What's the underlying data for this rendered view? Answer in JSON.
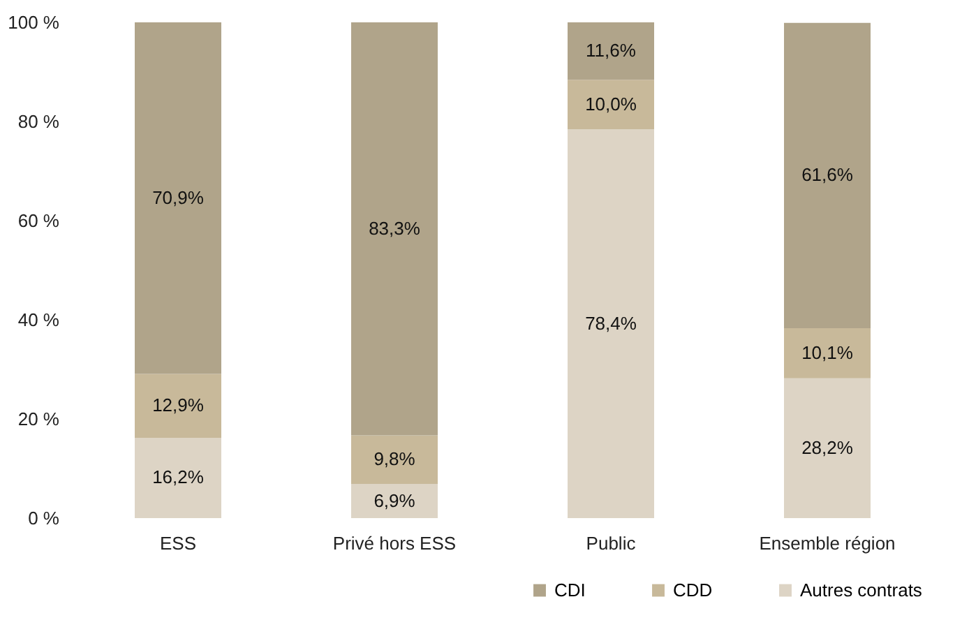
{
  "chart_data": {
    "type": "bar",
    "stacked": true,
    "categories": [
      "ESS",
      "Privé hors ESS",
      "Public",
      "Ensemble région"
    ],
    "series": [
      {
        "name": "Autres contrats",
        "color": "#ddd4c5",
        "values": [
          16.2,
          6.9,
          78.4,
          28.2
        ],
        "value_labels": [
          "16,2%",
          "6,9%",
          "78,4%",
          "28,2%"
        ]
      },
      {
        "name": "CDD",
        "color": "#c8b99a",
        "values": [
          12.9,
          9.8,
          10.0,
          10.1
        ],
        "value_labels": [
          "12,9%",
          "9,8%",
          "10,0%",
          "10,1%"
        ]
      },
      {
        "name": "CDI",
        "color": "#b0a48a",
        "values": [
          70.9,
          83.3,
          11.6,
          61.6
        ],
        "value_labels": [
          "70,9%",
          "83,3%",
          "11,6%",
          "61,6%"
        ]
      }
    ],
    "ylim": [
      0,
      100
    ],
    "yticks": [
      {
        "value": 0,
        "label": "0 %"
      },
      {
        "value": 20,
        "label": "20 %"
      },
      {
        "value": 40,
        "label": "40 %"
      },
      {
        "value": 60,
        "label": "60 %"
      },
      {
        "value": 80,
        "label": "80 %"
      },
      {
        "value": 100,
        "label": "100 %"
      }
    ],
    "legend": "bottom right",
    "grid": false
  }
}
